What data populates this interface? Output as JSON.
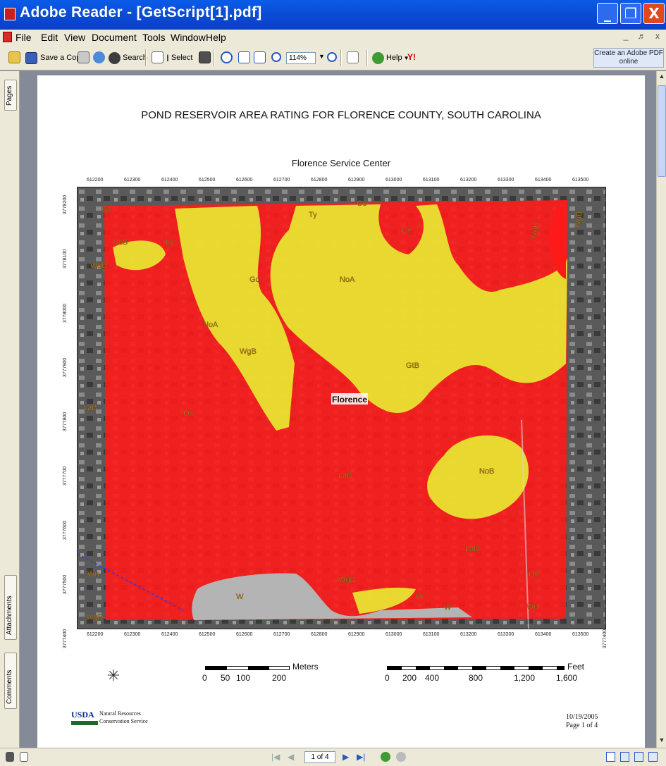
{
  "window": {
    "title": "Adobe Reader - [GetScript[1].pdf]",
    "min": "_",
    "max": "❐",
    "close": "X"
  },
  "menu": [
    "File",
    "Edit",
    "View",
    "Document",
    "Tools",
    "Window",
    "Help"
  ],
  "menu_ctrls": "_ ♬ x",
  "toolbar": {
    "save_copy": "Save a Copy",
    "search": "Search",
    "select": "Select",
    "zoom": "114%",
    "help": "Help",
    "create_pdf": "Create an Adobe PDF online"
  },
  "nav_tabs": [
    "Pages",
    "Attachments",
    "Comments"
  ],
  "status": {
    "page_box": "1 of 4"
  },
  "map": {
    "title": "POND RESERVOIR AREA RATING FOR FLORENCE COUNTY, SOUTH CAROLINA",
    "subtitle": "Florence Service Center",
    "x_ticks": [
      "612200",
      "612300",
      "612400",
      "612500",
      "612600",
      "612700",
      "612800",
      "612900",
      "613000",
      "613100",
      "613200",
      "613300",
      "613400",
      "613500"
    ],
    "y_ticks": [
      "3778200",
      "3778100",
      "3778000",
      "3777900",
      "3777800",
      "3777700",
      "3777600",
      "3777500",
      "3777400"
    ],
    "city_label": "Florence",
    "soil_labels": [
      "Go",
      "NoB",
      "WgB",
      "Ly",
      "Go",
      "NoA",
      "Ty",
      "Go",
      "Cv",
      "NoA",
      "WgB",
      "WgB",
      "GtB",
      "LaB",
      "Os",
      "WgB",
      "LaB",
      "NoB",
      "LaD",
      "Os",
      "Wn",
      "W",
      "WgB",
      "Ly",
      "W",
      "Wn",
      "WgD"
    ],
    "meters_label": "Meters",
    "meters_ticks": [
      "0",
      "50",
      "100",
      "200"
    ],
    "feet_label": "Feet",
    "feet_ticks": [
      "0",
      "200",
      "400",
      "800",
      "1,200",
      "1,600"
    ],
    "usda": "USDA",
    "agency_line1": "Natural Resources",
    "agency_line2": "Conservation Service",
    "date": "10/19/2005",
    "page_of": "Page 1 of 4",
    "colors": {
      "red": "#ff1a1a",
      "yellow": "#e8e832",
      "gray": "#b4b4b4"
    }
  }
}
